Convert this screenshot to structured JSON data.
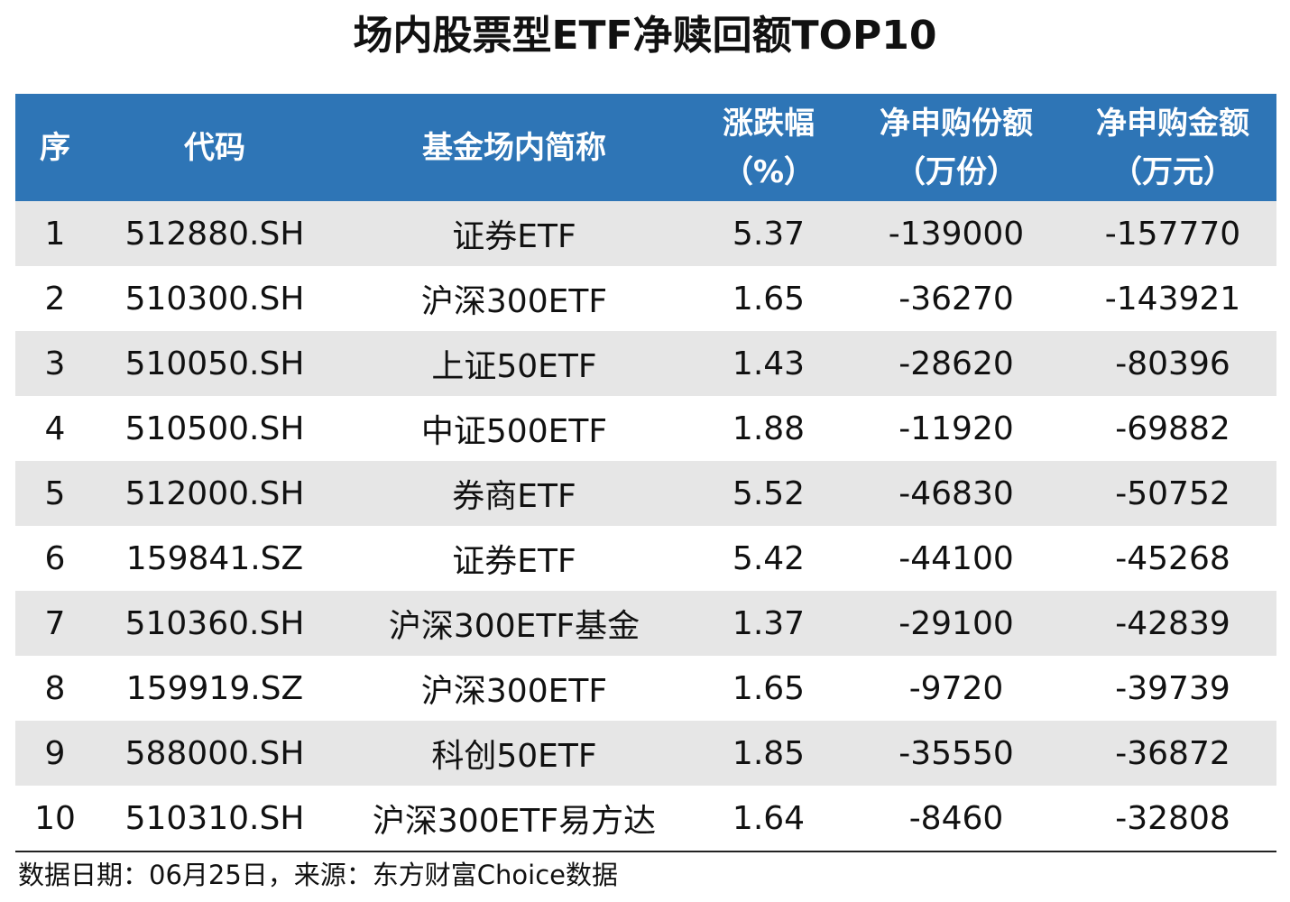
{
  "title": "场内股票型ETF净赎回额TOP10",
  "table": {
    "headers": {
      "seq": "序",
      "code": "代码",
      "name": "基金场内简称",
      "change_line1": "涨跌幅",
      "change_line2": "（%）",
      "shares_line1": "净申购份额",
      "shares_line2": "（万份）",
      "amount_line1": "净申购金额",
      "amount_line2": "（万元）"
    },
    "rows": [
      {
        "seq": "1",
        "code": "512880.SH",
        "name": "证券ETF",
        "change": "5.37",
        "shares": "-139000",
        "amount": "-157770"
      },
      {
        "seq": "2",
        "code": "510300.SH",
        "name": "沪深300ETF",
        "change": "1.65",
        "shares": "-36270",
        "amount": "-143921"
      },
      {
        "seq": "3",
        "code": "510050.SH",
        "name": "上证50ETF",
        "change": "1.43",
        "shares": "-28620",
        "amount": "-80396"
      },
      {
        "seq": "4",
        "code": "510500.SH",
        "name": "中证500ETF",
        "change": "1.88",
        "shares": "-11920",
        "amount": "-69882"
      },
      {
        "seq": "5",
        "code": "512000.SH",
        "name": "券商ETF",
        "change": "5.52",
        "shares": "-46830",
        "amount": "-50752"
      },
      {
        "seq": "6",
        "code": "159841.SZ",
        "name": "证券ETF",
        "change": "5.42",
        "shares": "-44100",
        "amount": "-45268"
      },
      {
        "seq": "7",
        "code": "510360.SH",
        "name": "沪深300ETF基金",
        "change": "1.37",
        "shares": "-29100",
        "amount": "-42839"
      },
      {
        "seq": "8",
        "code": "159919.SZ",
        "name": "沪深300ETF",
        "change": "1.65",
        "shares": "-9720",
        "amount": "-39739"
      },
      {
        "seq": "9",
        "code": "588000.SH",
        "name": "科创50ETF",
        "change": "1.85",
        "shares": "-35550",
        "amount": "-36872"
      },
      {
        "seq": "10",
        "code": "510310.SH",
        "name": "沪深300ETF易方达",
        "change": "1.64",
        "shares": "-8460",
        "amount": "-32808"
      }
    ]
  },
  "footer": "数据日期：06月25日，来源：东方财富Choice数据",
  "colors": {
    "header_bg": "#2e75b6",
    "header_text": "#ffffff",
    "stripe_bg": "#e6e6e6"
  }
}
